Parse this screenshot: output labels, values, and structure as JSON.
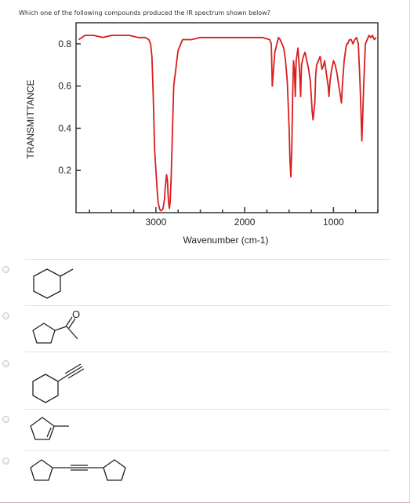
{
  "question": {
    "text": "Which one of the following compounds produced the IR spectrum shown below?"
  },
  "chart_data": {
    "type": "line",
    "title": "",
    "xlabel": "Wavenumber (cm-1)",
    "ylabel": "TRANSMITTANCE",
    "xlim": [
      3900,
      500
    ],
    "ylim": [
      0.0,
      0.9
    ],
    "x_ticks": [
      3000,
      2000,
      1000
    ],
    "y_ticks": [
      0.8,
      0.6,
      0.4,
      0.2
    ],
    "x_tick_labels": [
      "3000",
      "2000",
      "1000"
    ],
    "y_tick_labels": [
      "0.8",
      "0.6",
      "0.4",
      "0.2"
    ],
    "grid": false,
    "legend": "none",
    "line_color": "#d91e1e",
    "series": [
      {
        "x": [
          3870,
          3800,
          3700,
          3600,
          3500,
          3400,
          3300,
          3200,
          3120,
          3080,
          3060,
          3045,
          3030,
          3015,
          3000,
          2985,
          2975,
          2960,
          2950,
          2935,
          2920,
          2905,
          2895,
          2880,
          2870,
          2862,
          2855,
          2848,
          2840,
          2830,
          2800,
          2750,
          2700,
          2600,
          2500,
          2400,
          2300,
          2200,
          2100,
          2000,
          1900,
          1800,
          1720,
          1700,
          1690,
          1660,
          1620,
          1600,
          1580,
          1560,
          1540,
          1520,
          1500,
          1490,
          1480,
          1470,
          1460,
          1450,
          1440,
          1430,
          1420,
          1400,
          1380,
          1370,
          1360,
          1340,
          1320,
          1300,
          1280,
          1260,
          1250,
          1240,
          1230,
          1210,
          1200,
          1190,
          1170,
          1150,
          1130,
          1110,
          1100,
          1080,
          1060,
          1050,
          1040,
          1020,
          1000,
          980,
          960,
          940,
          920,
          910,
          900,
          880,
          860,
          850,
          840,
          820,
          800,
          780,
          760,
          740,
          720,
          700,
          680,
          660,
          640,
          620,
          600,
          580,
          560,
          540,
          520
        ],
        "y": [
          0.82,
          0.84,
          0.84,
          0.83,
          0.84,
          0.84,
          0.84,
          0.83,
          0.83,
          0.82,
          0.8,
          0.74,
          0.55,
          0.3,
          0.2,
          0.1,
          0.05,
          0.02,
          0.01,
          0.01,
          0.02,
          0.06,
          0.12,
          0.18,
          0.15,
          0.08,
          0.04,
          0.02,
          0.05,
          0.15,
          0.6,
          0.77,
          0.82,
          0.82,
          0.83,
          0.83,
          0.83,
          0.83,
          0.83,
          0.83,
          0.83,
          0.83,
          0.82,
          0.8,
          0.6,
          0.76,
          0.83,
          0.82,
          0.8,
          0.78,
          0.72,
          0.62,
          0.4,
          0.25,
          0.17,
          0.3,
          0.55,
          0.72,
          0.68,
          0.55,
          0.72,
          0.78,
          0.65,
          0.55,
          0.7,
          0.74,
          0.76,
          0.72,
          0.68,
          0.62,
          0.55,
          0.48,
          0.44,
          0.52,
          0.65,
          0.7,
          0.72,
          0.74,
          0.68,
          0.7,
          0.72,
          0.66,
          0.6,
          0.55,
          0.62,
          0.68,
          0.72,
          0.7,
          0.66,
          0.6,
          0.55,
          0.52,
          0.6,
          0.72,
          0.78,
          0.8,
          0.8,
          0.82,
          0.82,
          0.8,
          0.82,
          0.83,
          0.8,
          0.6,
          0.34,
          0.6,
          0.8,
          0.82,
          0.84,
          0.83,
          0.84,
          0.82,
          0.83
        ]
      }
    ]
  },
  "options": [
    {
      "id": "A",
      "name": "methylcyclohexane"
    },
    {
      "id": "B",
      "name": "cyclopentyl methyl ketone"
    },
    {
      "id": "C",
      "name": "ethynylcyclohexane"
    },
    {
      "id": "D",
      "name": "1-methylcyclopentene"
    },
    {
      "id": "E",
      "name": "dicyclopentylethyne"
    }
  ],
  "labels": {
    "carbonyl_oxygen": "O"
  }
}
